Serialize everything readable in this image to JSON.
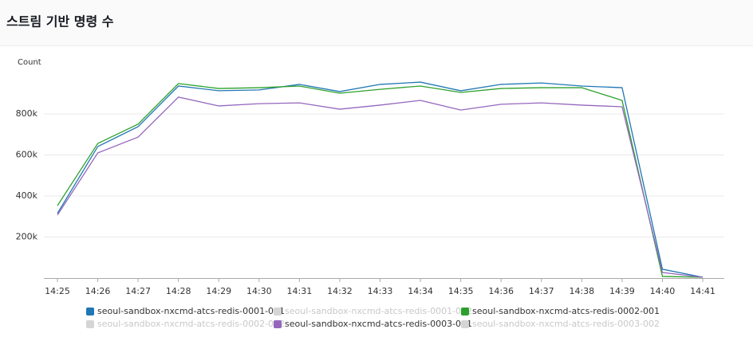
{
  "chart_data": {
    "type": "line",
    "title": "스트림 기반 명령 수",
    "y_label": "Count",
    "categories": [
      "14:25",
      "14:26",
      "14:27",
      "14:28",
      "14:29",
      "14:30",
      "14:31",
      "14:32",
      "14:33",
      "14:34",
      "14:35",
      "14:36",
      "14:37",
      "14:38",
      "14:39",
      "14:40",
      "14:41"
    ],
    "series": [
      {
        "name": "seoul-sandbox-nxcmd-atcs-redis-0001-001",
        "color": "#1f77b4",
        "values": [
          315000,
          641000,
          738000,
          936000,
          913000,
          917000,
          944000,
          909000,
          944000,
          955000,
          913000,
          944000,
          951000,
          936000,
          928000,
          43000,
          4000
        ]
      },
      {
        "name": "seoul-sandbox-nxcmd-atcs-redis-0001-002",
        "color": "#d5d5d5",
        "hidden": true
      },
      {
        "name": "seoul-sandbox-nxcmd-atcs-redis-0002-001",
        "color": "#2ca02c",
        "values": [
          353000,
          656000,
          750000,
          948000,
          924000,
          928000,
          936000,
          901000,
          920000,
          936000,
          905000,
          924000,
          928000,
          928000,
          866000,
          8000,
          4000
        ]
      },
      {
        "name": "seoul-sandbox-nxcmd-atcs-redis-0002-002",
        "color": "#d5d5d5",
        "hidden": true
      },
      {
        "name": "seoul-sandbox-nxcmd-atcs-redis-0003-001",
        "color": "#9467bd",
        "values": [
          307000,
          610000,
          687000,
          882000,
          839000,
          850000,
          854000,
          823000,
          843000,
          866000,
          819000,
          847000,
          854000,
          843000,
          835000,
          27000,
          4000
        ]
      },
      {
        "name": "seoul-sandbox-nxcmd-atcs-redis-0003-002",
        "color": "#d5d5d5",
        "hidden": true
      }
    ],
    "ylim": [
      0,
      1000000
    ],
    "yticks": [
      {
        "value": 200000,
        "label": "200k"
      },
      {
        "value": 400000,
        "label": "400k"
      },
      {
        "value": 600000,
        "label": "600k"
      },
      {
        "value": 800000,
        "label": "800k"
      }
    ],
    "grid": true
  }
}
